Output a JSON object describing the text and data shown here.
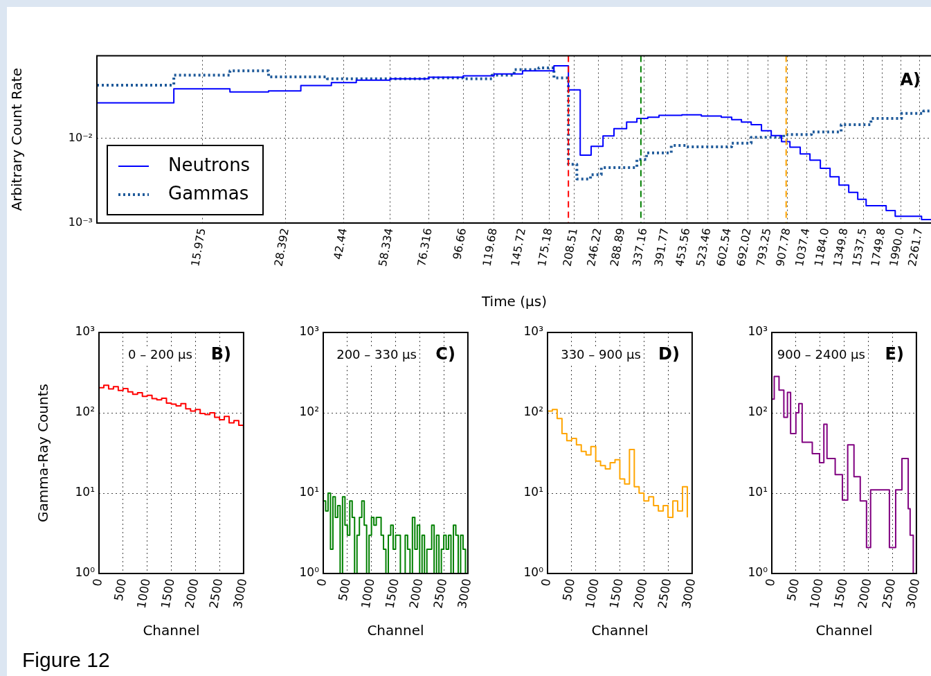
{
  "chart_data": [
    {
      "type": "step",
      "xlabel": "Time (μs)",
      "ylabel": "Arbitrary Count Rate",
      "log": "xy",
      "grid": true,
      "legend": "bottom left",
      "annotations": [
        "A)",
        "Figure 12"
      ],
      "xlim": [
        7.7,
        2460
      ],
      "ylim": [
        0.001,
        0.093
      ],
      "xticks": [
        15.975,
        28.392,
        42.44,
        58.334,
        76.316,
        96.66,
        119.68,
        145.72,
        175.18,
        208.51,
        246.22,
        288.89,
        337.16,
        391.77,
        453.56,
        523.46,
        602.54,
        692.02,
        793.25,
        907.78,
        1037.4,
        {
          "value": 1184,
          "label": "1184.0"
        },
        1349.8,
        1537.5,
        1749.8,
        {
          "value": 1990,
          "label": "1990.0"
        },
        2261.7
      ],
      "yticks": [
        {
          "value": 0.001,
          "label": "10⁻³"
        },
        {
          "value": 0.01,
          "label": "10⁻²"
        }
      ],
      "ref_lines": [
        {
          "axis": "x",
          "value": 200,
          "color": "#ff0000",
          "line_style": "dashed"
        },
        {
          "axis": "x",
          "value": 330,
          "color": "#008000",
          "line_style": "dashed"
        },
        {
          "axis": "x",
          "value": 900,
          "color": "#ffa500",
          "line_style": "dashed"
        }
      ],
      "series": [
        {
          "name": "Neutrons",
          "color": "#0000ff",
          "line_style": "solid",
          "x": [
            7.7,
            13.1,
            19.3,
            25.2,
            31.5,
            38.9,
            46.2,
            58.3,
            76.3,
            96.7,
            119.7,
            145.7,
            181,
            200,
            217,
            234,
            254,
            274,
            299,
            321,
            346,
            374,
            438,
            501,
            575,
            618,
            661,
            707,
            759,
            812,
            872,
            924,
            992,
            1061,
            1140,
            1219,
            1297,
            1387,
            1476,
            1564,
            1796,
            1912,
            2294,
            2460
          ],
          "values": [
            0.026,
            0.038,
            0.035,
            0.036,
            0.0415,
            0.045,
            0.048,
            0.05,
            0.052,
            0.054,
            0.057,
            0.062,
            0.071,
            0.037,
            0.0063,
            0.008,
            0.0106,
            0.0129,
            0.0154,
            0.017,
            0.0176,
            0.0185,
            0.0188,
            0.0182,
            0.0176,
            0.0165,
            0.0154,
            0.0144,
            0.0122,
            0.0107,
            0.0091,
            0.0078,
            0.0065,
            0.0055,
            0.0044,
            0.0035,
            0.0028,
            0.0023,
            0.0019,
            0.0016,
            0.0014,
            0.0012,
            0.0011,
            0.0011
          ]
        },
        {
          "name": "Gammas",
          "color": "#1f5a9a",
          "line_style": "dotted",
          "x": [
            7.7,
            13.1,
            19.3,
            25.2,
            37.8,
            75,
            96.7,
            118,
            137.5,
            163,
            181,
            200,
            212,
            233,
            251,
            321,
            343,
            407,
            452,
            618,
            707,
            885,
            1072,
            1316,
            1617,
            1997,
            2326,
            2460
          ],
          "values": [
            0.042,
            0.055,
            0.062,
            0.0525,
            0.05,
            0.051,
            0.05,
            0.055,
            0.064,
            0.067,
            0.051,
            0.0049,
            0.0033,
            0.0037,
            0.0045,
            0.0056,
            0.0067,
            0.0082,
            0.0079,
            0.0087,
            0.0102,
            0.011,
            0.0118,
            0.0144,
            0.017,
            0.0195,
            0.0208,
            0.0208
          ]
        }
      ]
    },
    {
      "type": "step",
      "xlabel": "Channel",
      "ylabel": "Gamma-Ray Counts",
      "log": true,
      "grid": true,
      "annotations": [
        "0 – 200 μs",
        "B)"
      ],
      "xlim": [
        0,
        3000
      ],
      "ylim": [
        1,
        1000
      ],
      "xticks": [
        0,
        500,
        1000,
        1500,
        2000,
        2500,
        3000
      ],
      "yticks": [
        {
          "value": 1,
          "label": "10⁰"
        },
        {
          "value": 10,
          "label": "10¹"
        },
        {
          "value": 100,
          "label": "10²"
        },
        {
          "value": 1000,
          "label": "10³"
        }
      ],
      "series": [
        {
          "color": "#ff0000",
          "x": [
            0,
            100,
            200,
            300,
            400,
            500,
            600,
            700,
            800,
            900,
            1000,
            1100,
            1200,
            1300,
            1400,
            1500,
            1600,
            1700,
            1800,
            1900,
            2000,
            2100,
            2200,
            2300,
            2400,
            2500,
            2600,
            2700,
            2800,
            2900,
            3000
          ],
          "values": [
            205,
            220,
            198,
            212,
            190,
            200,
            182,
            170,
            178,
            160,
            165,
            150,
            145,
            152,
            132,
            128,
            122,
            130,
            112,
            105,
            110,
            98,
            95,
            100,
            88,
            82,
            90,
            75,
            80,
            70,
            64
          ]
        }
      ]
    },
    {
      "type": "step",
      "xlabel": "Channel",
      "log": true,
      "grid": true,
      "annotations": [
        "200 – 330 μs",
        "C)"
      ],
      "xlim": [
        0,
        3000
      ],
      "ylim": [
        1,
        1000
      ],
      "xticks": [
        0,
        500,
        1000,
        1500,
        2000,
        2500,
        3000
      ],
      "yticks": [
        {
          "value": 1,
          "label": "10⁰"
        },
        {
          "value": 10,
          "label": "10¹"
        },
        {
          "value": 100,
          "label": "10²"
        },
        {
          "value": 1000,
          "label": "10³"
        }
      ],
      "series": [
        {
          "color": "#008000",
          "x": [
            0,
            50,
            100,
            150,
            200,
            250,
            300,
            350,
            400,
            450,
            500,
            550,
            600,
            650,
            700,
            750,
            800,
            850,
            900,
            950,
            1000,
            1050,
            1100,
            1150,
            1200,
            1250,
            1300,
            1350,
            1400,
            1450,
            1500,
            1550,
            1600,
            1650,
            1700,
            1750,
            1800,
            1850,
            1900,
            1950,
            2000,
            2050,
            2100,
            2150,
            2200,
            2250,
            2300,
            2350,
            2400,
            2450,
            2500,
            2550,
            2600,
            2650,
            2700,
            2750,
            2800,
            2850,
            2900,
            2950,
            3000
          ],
          "values": [
            8,
            6,
            10,
            2,
            9,
            5,
            7,
            1,
            9,
            4,
            3,
            8,
            5,
            1,
            3,
            5,
            8,
            4,
            1,
            3,
            5,
            4,
            5,
            5,
            3,
            2,
            1,
            3,
            4,
            2,
            3,
            3,
            1,
            1,
            3,
            2,
            1,
            5,
            2,
            4,
            1,
            3,
            1,
            2,
            2,
            4,
            1,
            3,
            1,
            2,
            3,
            2,
            3,
            1,
            4,
            3,
            1,
            3,
            2,
            1,
            2
          ]
        }
      ]
    },
    {
      "type": "step",
      "xlabel": "Channel",
      "log": true,
      "grid": true,
      "annotations": [
        "330 – 900 μs",
        "D)"
      ],
      "xlim": [
        0,
        3000
      ],
      "ylim": [
        1,
        1000
      ],
      "xticks": [
        0,
        500,
        1000,
        1500,
        2000,
        2500,
        3000
      ],
      "yticks": [
        {
          "value": 1,
          "label": "10⁰"
        },
        {
          "value": 10,
          "label": "10¹"
        },
        {
          "value": 100,
          "label": "10²"
        },
        {
          "value": 1000,
          "label": "10³"
        }
      ],
      "series": [
        {
          "color": "#ffa500",
          "x": [
            0,
            100,
            200,
            300,
            400,
            500,
            600,
            700,
            800,
            900,
            1000,
            1100,
            1200,
            1300,
            1400,
            1500,
            1600,
            1700,
            1800,
            1900,
            2000,
            2100,
            2200,
            2300,
            2400,
            2500,
            2600,
            2700,
            2800,
            2900
          ],
          "values": [
            105,
            110,
            85,
            55,
            45,
            48,
            40,
            33,
            30,
            38,
            25,
            22,
            20,
            24,
            26,
            15,
            13,
            35,
            12,
            10,
            8,
            9,
            7,
            6,
            7,
            5,
            8,
            6,
            12,
            5
          ]
        }
      ]
    },
    {
      "type": "step",
      "xlabel": "Channel",
      "log": true,
      "grid": true,
      "annotations": [
        "900 – 2400 μs",
        "E)"
      ],
      "xlim": [
        0,
        3000
      ],
      "ylim": [
        1,
        1000
      ],
      "xticks": [
        0,
        500,
        1000,
        1500,
        2000,
        2500,
        3000
      ],
      "yticks": [
        {
          "value": 1,
          "label": "10⁰"
        },
        {
          "value": 10,
          "label": "10¹"
        },
        {
          "value": 100,
          "label": "10²"
        },
        {
          "value": 1000,
          "label": "10³"
        }
      ],
      "series": [
        {
          "color": "#800080",
          "x": [
            0,
            50,
            150,
            250,
            325,
            390,
            500,
            560,
            630,
            840,
            990,
            1080,
            1145,
            1315,
            1465,
            1575,
            1705,
            1835,
            1965,
            2050,
            2265,
            2440,
            2570,
            2700,
            2830,
            2870,
            2935,
            3000
          ],
          "values": [
            148,
            284,
            192,
            88,
            180,
            55,
            100,
            130,
            43,
            31,
            24,
            72,
            27,
            17,
            8.2,
            40,
            16,
            8,
            2.1,
            11,
            11,
            2.1,
            11,
            27,
            6.4,
            3,
            1,
            1
          ]
        }
      ]
    }
  ]
}
